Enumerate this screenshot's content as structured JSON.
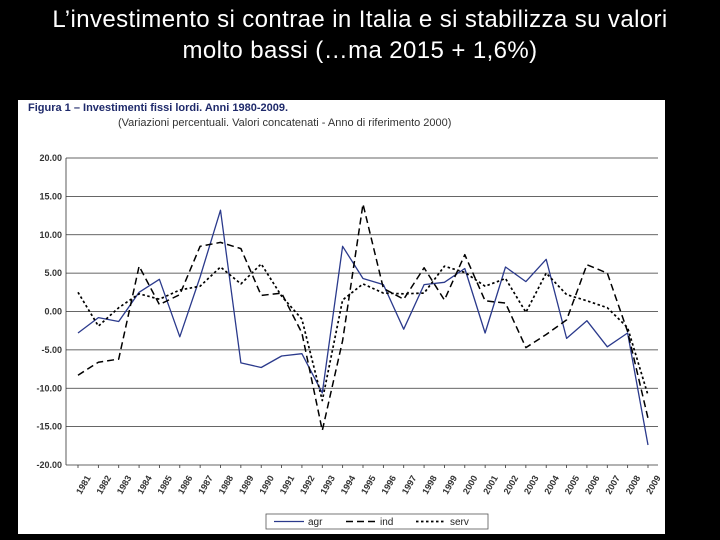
{
  "slide": {
    "title": "L’investimento si contrae in Italia e si stabilizza su valori molto bassi (…ma 2015 + 1,6%)"
  },
  "figure": {
    "title": "Figura 1 – Investimenti fissi lordi. Anni 1980-2009.",
    "subtitle": "(Variazioni percentuali. Valori concatenati - Anno di riferimento 2000)"
  },
  "colors": {
    "agr": "#2b3a8c",
    "ind": "#000000",
    "serv": "#000000",
    "grid": "#333333"
  },
  "chart_data": {
    "type": "line",
    "x": [
      "1981",
      "1982",
      "1983",
      "1984",
      "1985",
      "1986",
      "1987",
      "1988",
      "1989",
      "1990",
      "1991",
      "1992",
      "1993",
      "1994",
      "1995",
      "1996",
      "1997",
      "1998",
      "1999",
      "2000",
      "2001",
      "2002",
      "2003",
      "2004",
      "2005",
      "2006",
      "2007",
      "2008",
      "2009"
    ],
    "series": [
      {
        "name": "agr",
        "style": "solid",
        "values": [
          -2.8,
          -0.8,
          -1.3,
          2.5,
          4.2,
          -3.3,
          4.5,
          13.2,
          -6.7,
          -7.3,
          -5.8,
          -5.5,
          -10.6,
          8.5,
          4.3,
          3.5,
          -2.3,
          3.5,
          3.8,
          5.6,
          -2.8,
          5.8,
          3.9,
          6.8,
          -3.5,
          -1.2,
          -4.6,
          -2.8,
          -17.4
        ]
      },
      {
        "name": "ind",
        "style": "dashed",
        "values": [
          -8.3,
          -6.6,
          -6.2,
          5.9,
          0.9,
          2.2,
          8.5,
          9.0,
          8.2,
          2.1,
          2.4,
          -2.8,
          -15.5,
          -3.8,
          14.0,
          3.0,
          1.6,
          5.7,
          1.5,
          7.4,
          1.4,
          1.1,
          -4.7,
          -3.0,
          -1.1,
          6.1,
          5.0,
          -2.6,
          -13.9
        ]
      },
      {
        "name": "serv",
        "style": "dotted",
        "values": [
          2.5,
          -1.9,
          0.5,
          2.3,
          1.6,
          2.8,
          3.3,
          5.8,
          3.6,
          6.2,
          2.0,
          -1.0,
          -11.6,
          1.5,
          3.6,
          2.4,
          2.3,
          2.4,
          5.9,
          5.1,
          3.3,
          4.3,
          -0.1,
          5.0,
          2.2,
          1.4,
          0.5,
          -2.1,
          -10.9
        ]
      }
    ],
    "y_ticks": [
      "20.00",
      "15.00",
      "10.00",
      "5.00",
      "0.00",
      "-5.00",
      "-10.00",
      "-15.00",
      "-20.00"
    ],
    "ylim": [
      -20,
      20
    ],
    "grid": "horizontal",
    "legend_position": "bottom",
    "title": "Figura 1 – Investimenti fissi lordi. Anni 1980-2009.",
    "subtitle": "(Variazioni percentuali. Valori concatenati - Anno di riferimento 2000)",
    "xlabel": "",
    "ylabel": ""
  }
}
